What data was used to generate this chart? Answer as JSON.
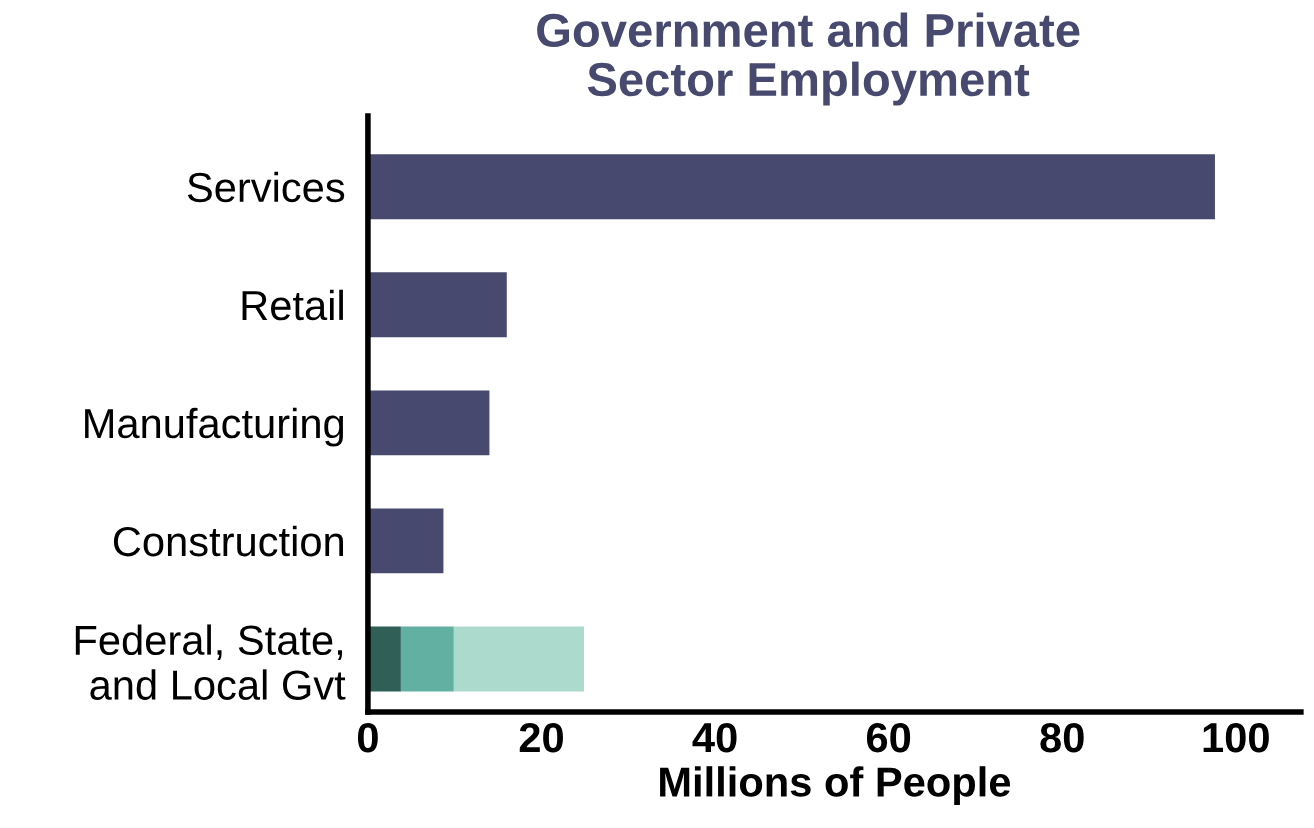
{
  "chart_data": {
    "type": "bar",
    "orientation": "horizontal",
    "stacked": true,
    "title": "Government and Private\nSector Employment",
    "xlabel": "Millions of People",
    "categories": [
      "Services",
      "Retail",
      "Manufacturing",
      "Construction",
      "Federal, State,\nand Local Gvt"
    ],
    "series": [
      {
        "color": "#474a6e",
        "values": [
          97.6,
          16,
          14,
          8.7,
          null
        ]
      },
      {
        "color": "#2f5f57",
        "values": [
          null,
          null,
          null,
          null,
          3.8
        ]
      },
      {
        "color": "#62b0a1",
        "values": [
          null,
          null,
          null,
          null,
          6.1
        ]
      },
      {
        "color": "#acdacd",
        "values": [
          null,
          null,
          null,
          null,
          15
        ]
      }
    ],
    "xlim": [
      0,
      107.5
    ],
    "xticks": [
      0,
      20,
      40,
      60,
      80,
      100
    ],
    "grid": false
  }
}
